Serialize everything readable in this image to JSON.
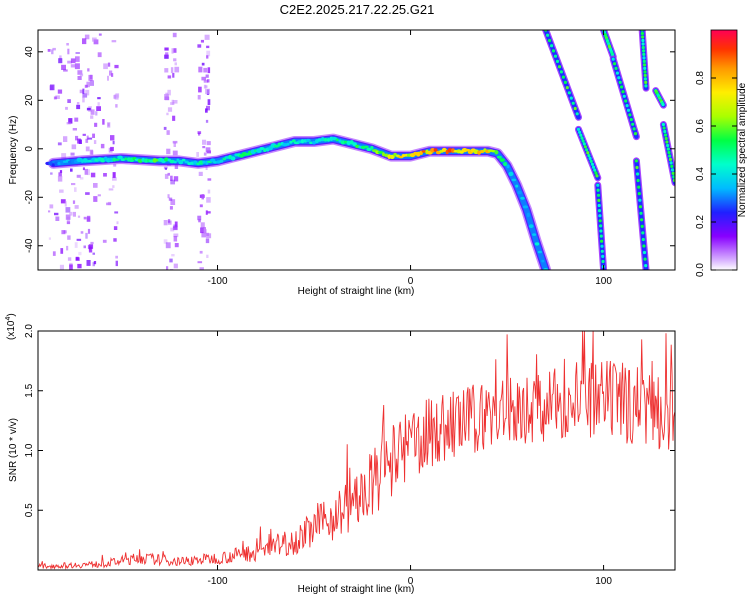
{
  "title": "C2E2.2025.217.22.25.G21",
  "chart_data": [
    {
      "type": "heatmap",
      "name": "spectrogram",
      "xlabel": "Height of straight line (km)",
      "ylabel": "Frequency (Hz)",
      "xlim": [
        -193,
        137
      ],
      "ylim": [
        -50,
        49
      ],
      "x_ticks": [
        -100,
        0,
        100
      ],
      "y_ticks": [
        -40,
        -20,
        0,
        20,
        40
      ],
      "colorbar": {
        "label": "Normalized spectral amplitude",
        "range": [
          0,
          1
        ],
        "ticks": [
          "0.0",
          "0.2",
          "0.4",
          "0.6",
          "0.8"
        ],
        "tick_values": [
          0.0,
          0.2,
          0.4,
          0.6,
          0.8
        ]
      },
      "main_trace": {
        "x": [
          -185,
          -170,
          -150,
          -130,
          -120,
          -110,
          -100,
          -90,
          -80,
          -70,
          -60,
          -50,
          -40,
          -30,
          -20,
          -10,
          0,
          10,
          20,
          30,
          40,
          45,
          50,
          55,
          60,
          65,
          70
        ],
        "y": [
          -6,
          -5,
          -4,
          -5,
          -5,
          -6,
          -5,
          -3,
          -1,
          1,
          3,
          3,
          4,
          2,
          0,
          -3,
          -3,
          -1,
          -1,
          -1,
          -1,
          -2,
          -7,
          -15,
          -25,
          -38,
          -50
        ],
        "amp": [
          0.3,
          0.4,
          0.5,
          0.55,
          0.5,
          0.45,
          0.45,
          0.5,
          0.5,
          0.45,
          0.45,
          0.45,
          0.5,
          0.5,
          0.55,
          0.75,
          0.75,
          0.85,
          0.85,
          0.8,
          0.75,
          0.55,
          0.45,
          0.4,
          0.4,
          0.4,
          0.35
        ]
      },
      "aliased_traces": [
        {
          "x": [
            70,
            87
          ],
          "y": [
            49,
            13
          ]
        },
        {
          "x": [
            87,
            97
          ],
          "y": [
            8,
            -12
          ]
        },
        {
          "x": [
            97,
            100
          ],
          "y": [
            -15,
            -50
          ]
        },
        {
          "x": [
            100,
            105
          ],
          "y": [
            49,
            38
          ]
        },
        {
          "x": [
            105,
            117
          ],
          "y": [
            37,
            5
          ]
        },
        {
          "x": [
            117,
            122
          ],
          "y": [
            -5,
            -50
          ]
        },
        {
          "x": [
            120,
            122
          ],
          "y": [
            49,
            25
          ]
        },
        {
          "x": [
            127,
            131
          ],
          "y": [
            24,
            18
          ]
        },
        {
          "x": [
            131,
            137
          ],
          "y": [
            10,
            -14
          ]
        }
      ],
      "noise_columns_x": [
        -180,
        -172,
        -160,
        -125,
        -108
      ]
    },
    {
      "type": "line",
      "name": "snr",
      "xlabel": "Height of straight line (km)",
      "ylabel": "SNR (10 * v/v)",
      "scale_label": "(x10",
      "scale_exponent": "4",
      "scale_suffix": ")",
      "xlim": [
        -193,
        137
      ],
      "ylim": [
        0,
        2.0
      ],
      "x_ticks": [
        -100,
        0,
        100
      ],
      "y_ticks": [
        0.5,
        1.0,
        1.5,
        2.0
      ],
      "y_tick_labels": [
        "0.5",
        "1.0",
        "1.5",
        "2.0"
      ],
      "series": [
        {
          "color": "#ee3030",
          "envelope": {
            "x": [
              -193,
              -160,
              -140,
              -120,
              -100,
              -80,
              -60,
              -50,
              -40,
              -30,
              -20,
              -10,
              0,
              10,
              20,
              30,
              40,
              60,
              80,
              100,
              120,
              137
            ],
            "mean": [
              0.03,
              0.05,
              0.1,
              0.07,
              0.1,
              0.15,
              0.25,
              0.35,
              0.45,
              0.55,
              0.7,
              0.9,
              1.05,
              1.15,
              1.2,
              1.25,
              1.3,
              1.35,
              1.4,
              1.4,
              1.4,
              1.35
            ],
            "spread": [
              0.02,
              0.03,
              0.05,
              0.04,
              0.05,
              0.08,
              0.12,
              0.15,
              0.2,
              0.25,
              0.3,
              0.3,
              0.3,
              0.3,
              0.3,
              0.3,
              0.3,
              0.3,
              0.3,
              0.35,
              0.35,
              0.4
            ]
          }
        }
      ]
    }
  ]
}
